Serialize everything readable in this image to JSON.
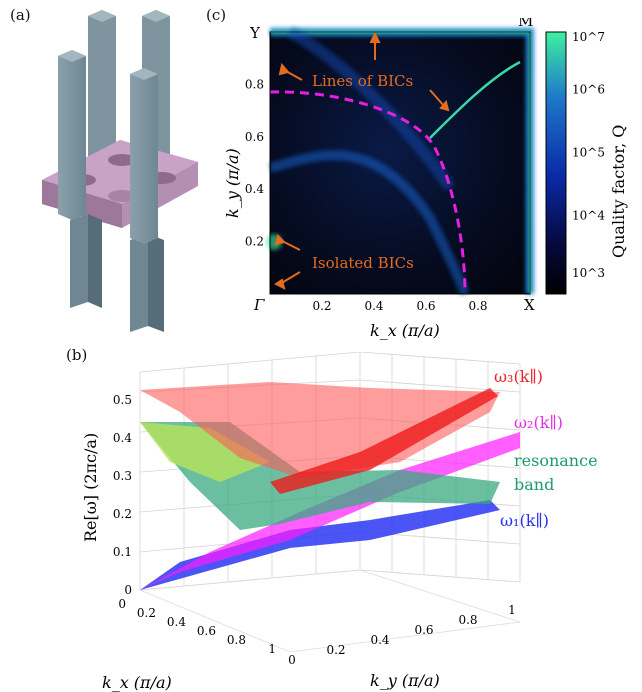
{
  "panels": {
    "a": "(a)",
    "b": "(b)",
    "c": "(c)"
  },
  "panel_c": {
    "corners": {
      "gamma": "Γ",
      "x": "X",
      "y": "Y",
      "m": "M"
    },
    "xlabel": "k_x (π/a)",
    "ylabel": "k_y (π/a)",
    "x_ticks": [
      "0.2",
      "0.4",
      "0.6",
      "0.8"
    ],
    "y_ticks": [
      "0.2",
      "0.4",
      "0.6",
      "0.8"
    ],
    "colorbar_label": "Quality factor, Q",
    "colorbar_ticks": [
      "10^7",
      "10^6",
      "10^5",
      "10^4",
      "10^3"
    ],
    "annotations": {
      "lines": "Lines of BICs",
      "isolated": "Isolated BICs"
    },
    "colors": {
      "dashed": "#e81ee0",
      "arrow": "#e36c1f",
      "line_bic": "#3ad9a8"
    }
  },
  "panel_b": {
    "zlabel": "Re[ω] (2πc/a)",
    "xlabel": "k_x (π/a)",
    "ylabel": "k_y (π/a)",
    "z_ticks": [
      "0",
      "0.1",
      "0.2",
      "0.3",
      "0.4",
      "0.5"
    ],
    "kx_ticks": [
      "0",
      "0.2",
      "0.4",
      "0.6",
      "0.8",
      "1"
    ],
    "ky_ticks": [
      "0",
      "0.2",
      "0.4",
      "0.6",
      "0.8",
      "1"
    ],
    "band_labels": {
      "omega3": "ω₃(k∥)",
      "omega2": "ω₂(k∥)",
      "resonance1": "resonance",
      "resonance2": "band",
      "omega1": "ω₁(k∥)"
    },
    "colors": {
      "omega3": "#e8232b",
      "omega2": "#e430e8",
      "resonance": "#1c9c6e",
      "omega1": "#2630e8"
    }
  }
}
